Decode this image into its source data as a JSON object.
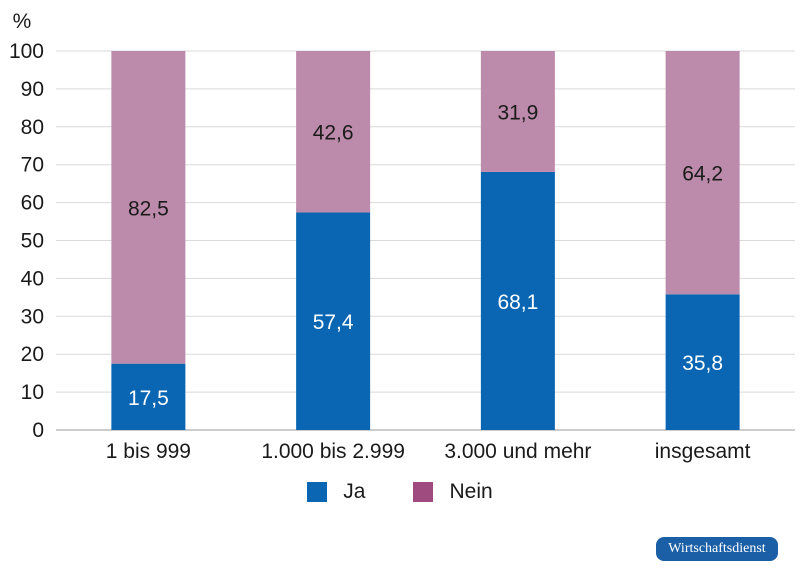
{
  "chart_data": {
    "type": "bar",
    "stacked": true,
    "unit_label": "%",
    "categories": [
      "1 bis 999",
      "1.000 bis 2.999",
      "3.000 und mehr",
      "insgesamt"
    ],
    "series": [
      {
        "name": "Ja",
        "values": [
          17.5,
          57.4,
          68.1,
          35.8
        ],
        "color": "#0a66b2"
      },
      {
        "name": "Nein",
        "values": [
          82.5,
          42.6,
          31.9,
          64.2
        ],
        "color": "#bc8aaa",
        "legend_color": "#a04b80"
      }
    ],
    "data_labels": {
      "Ja": [
        "17,5",
        "57,4",
        "68,1",
        "35,8"
      ],
      "Nein": [
        "82,5",
        "42,6",
        "31,9",
        "64,2"
      ]
    },
    "yticks": [
      "0",
      "10",
      "20",
      "30",
      "40",
      "50",
      "60",
      "70",
      "80",
      "90",
      "100"
    ],
    "ylim": [
      0,
      100
    ],
    "grid": true,
    "legend_position": "bottom-center",
    "gridline_color": "#d9d9d9",
    "data_label_colors": {
      "Ja": "#ffffff",
      "Nein": "#1a1a1a"
    }
  },
  "branding": {
    "text": "Wirtschaftsdienst",
    "color": "#1b5fa6"
  }
}
